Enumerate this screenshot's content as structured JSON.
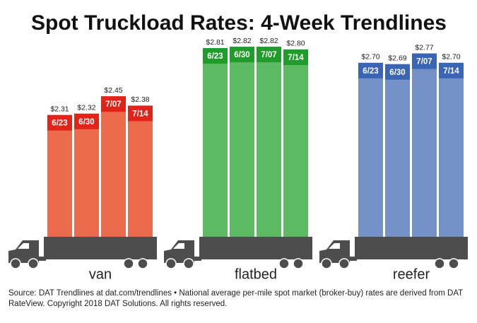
{
  "title": "Spot Truckload Rates: 4-Week Trendlines",
  "source": "Source: DAT Trendlines at dat.com/trendlines • National average per-mile spot market (broker-buy) rates are derived from DAT RateView. Copyright 2018 DAT Solutions. All rights reserved.",
  "chart_data": [
    {
      "type": "bar",
      "title": "van",
      "categories": [
        "6/23",
        "6/30",
        "7/07",
        "7/14"
      ],
      "values": [
        2.31,
        2.32,
        2.45,
        2.38
      ],
      "value_labels": [
        "$2.31",
        "$2.32",
        "$2.45",
        "$2.38"
      ],
      "color": "#ee6a4d",
      "accent_color": "#e2231a",
      "ylim": [
        1.4,
        2.9
      ]
    },
    {
      "type": "bar",
      "title": "flatbed",
      "categories": [
        "6/23",
        "6/30",
        "7/07",
        "7/14"
      ],
      "values": [
        2.81,
        2.82,
        2.82,
        2.8
      ],
      "value_labels": [
        "$2.81",
        "$2.82",
        "$2.82",
        "$2.80"
      ],
      "color": "#5cba62",
      "accent_color": "#1e9d2a",
      "ylim": [
        1.4,
        2.9
      ]
    },
    {
      "type": "bar",
      "title": "reefer",
      "categories": [
        "6/23",
        "6/30",
        "7/07",
        "7/14"
      ],
      "values": [
        2.7,
        2.69,
        2.77,
        2.7
      ],
      "value_labels": [
        "$2.70",
        "$2.69",
        "$2.77",
        "$2.70"
      ],
      "color": "#7592c8",
      "accent_color": "#3a64b4",
      "ylim": [
        1.4,
        2.9
      ]
    }
  ]
}
